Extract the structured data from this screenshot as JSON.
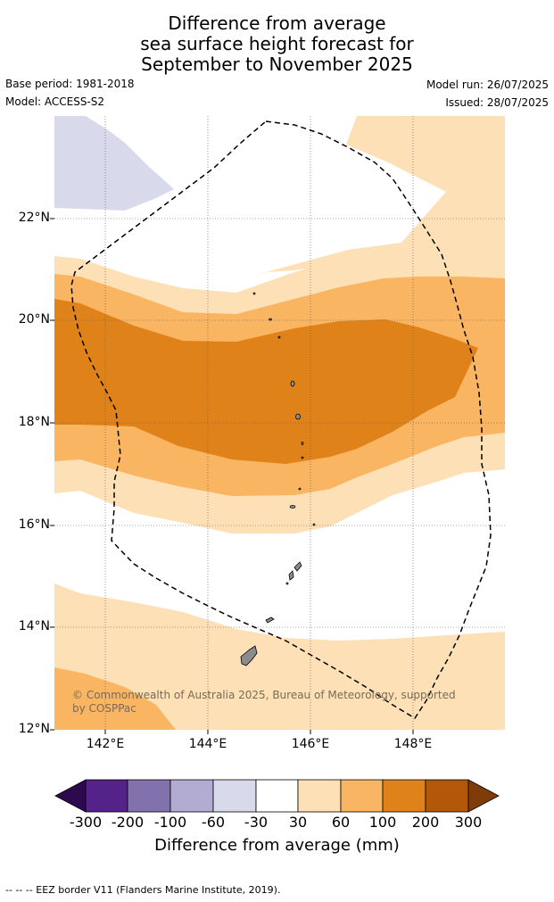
{
  "header": {
    "title_lines": [
      "Difference from average",
      "sea surface height forecast for",
      "September to November 2025"
    ],
    "base_period": "Base period: 1981-2018",
    "model": "Model: ACCESS-S2",
    "model_run": "Model run: 26/07/2025",
    "issued": "Issued: 28/07/2025"
  },
  "map": {
    "lat_labels": [
      "22°N",
      "20°N",
      "18°N",
      "16°N",
      "14°N",
      "12°N"
    ],
    "lon_labels": [
      "142°E",
      "144°E",
      "146°E",
      "148°E"
    ],
    "copyright": "© Commonwealth of Australia 2025, Bureau of Meteorology, supported by COSPPac",
    "gridlines": true,
    "land_color": "#8c8c8c",
    "eez_line_style": "dashed"
  },
  "colorbar": {
    "ticks": [
      "-300",
      "-200",
      "-100",
      "-60",
      "-30",
      "30",
      "60",
      "100",
      "200",
      "300"
    ],
    "colors": [
      "#2d0a4e",
      "#542288",
      "#8172ae",
      "#b2abd2",
      "#d8d9eb",
      "#ffffff",
      "#fde0b6",
      "#f9b561",
      "#e0821a",
      "#b35808",
      "#7f3b08"
    ],
    "label": "Difference from average (mm)"
  },
  "footer": {
    "legend": "--  --  -- EEZ border V11 (Flanders Marine Institute, 2019)."
  }
}
